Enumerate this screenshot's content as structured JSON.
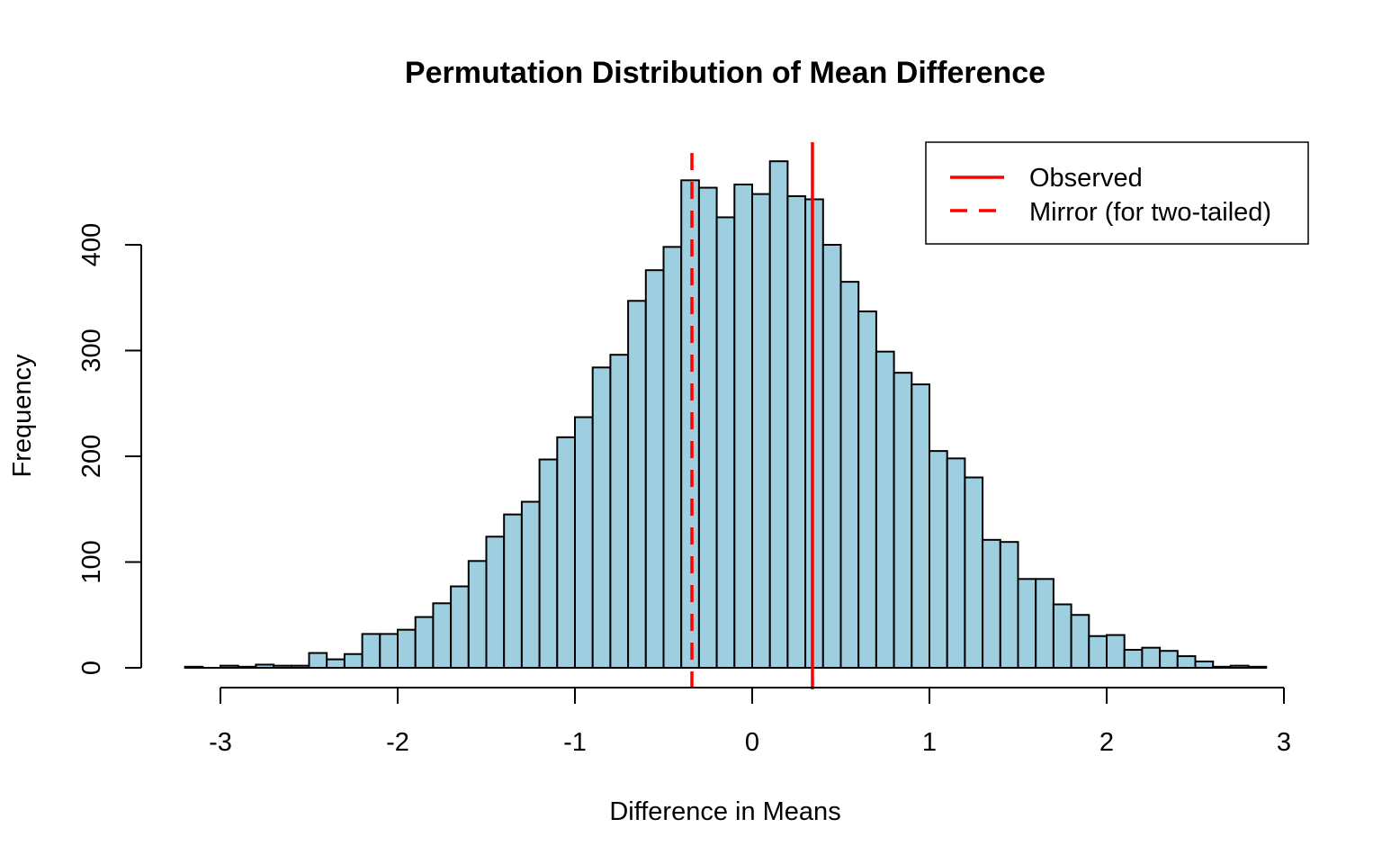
{
  "chart_data": {
    "type": "bar",
    "subtype": "histogram",
    "title": "Permutation Distribution of Mean Difference",
    "xlabel": "Difference in Means",
    "ylabel": "Frequency",
    "xlim": [
      -3.2,
      2.9
    ],
    "ylim": [
      0,
      480
    ],
    "bin_width": 0.1,
    "bin_start": -3.2,
    "bar_color": "#9ECFE0",
    "bar_edge_color": "#000000",
    "counts": [
      1,
      0,
      2,
      1,
      3,
      2,
      2,
      14,
      8,
      13,
      32,
      32,
      36,
      48,
      61,
      77,
      101,
      124,
      145,
      157,
      197,
      218,
      237,
      284,
      296,
      347,
      376,
      398,
      461,
      454,
      426,
      457,
      448,
      479,
      446,
      443,
      400,
      365,
      337,
      299,
      279,
      268,
      205,
      198,
      180,
      121,
      119,
      84,
      84,
      60,
      50,
      30,
      31,
      17,
      19,
      16,
      11,
      6,
      1,
      2,
      1
    ],
    "x_ticks": [
      -3,
      -2,
      -1,
      0,
      1,
      2,
      3
    ],
    "x_tick_labels": [
      "-3",
      "-2",
      "-1",
      "0",
      "1",
      "2",
      "3"
    ],
    "y_ticks": [
      0,
      100,
      200,
      300,
      400
    ],
    "y_tick_labels": [
      "0",
      "100",
      "200",
      "300",
      "400"
    ],
    "vlines": [
      {
        "name": "Observed",
        "x": 0.34,
        "color": "#FF0000",
        "style": "solid"
      },
      {
        "name": "Mirror (for two-tailed)",
        "x": -0.34,
        "color": "#FF0000",
        "style": "dashed"
      }
    ],
    "legend": {
      "position": "top-right",
      "entries": [
        {
          "label": "Observed",
          "color": "#FF0000",
          "style": "solid"
        },
        {
          "label": "Mirror (for two-tailed)",
          "color": "#FF0000",
          "style": "dashed"
        }
      ]
    },
    "grid": false
  }
}
